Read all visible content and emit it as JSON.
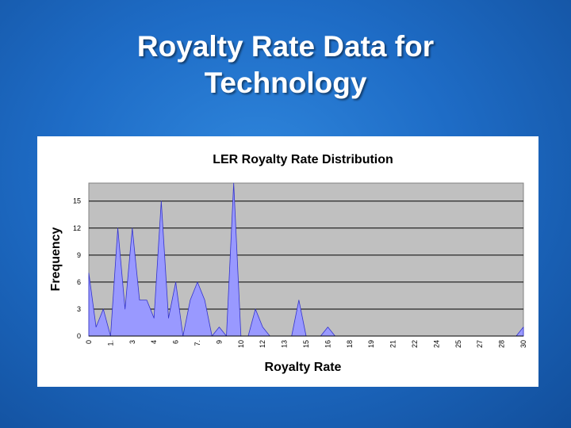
{
  "slide": {
    "title_line1": "Royalty Rate Data for",
    "title_line2": "Technology"
  },
  "colors": {
    "background": "#1e6cc6",
    "plot_area": "#c0c0c0",
    "series_fill": "#9999ff",
    "series_stroke": "#3333cc"
  },
  "chart_data": {
    "type": "area",
    "title": "LER Royalty Rate Distribution",
    "xlabel": "Royalty Rate",
    "ylabel": "Frequency",
    "ylim": [
      0,
      17
    ],
    "yticks": [
      0,
      3,
      6,
      9,
      12,
      15
    ],
    "grid": true,
    "legend": "none",
    "x_tick_labels": [
      "0",
      "1.",
      "3",
      "4",
      "6",
      "7.",
      "9",
      "10",
      "12",
      "13",
      "15",
      "16",
      "18",
      "19",
      "21",
      "22",
      "24",
      "25",
      "27",
      "28",
      "30"
    ],
    "values": [
      7,
      1,
      3,
      0,
      12,
      3,
      12,
      4,
      4,
      2,
      15,
      2,
      6,
      0,
      4,
      6,
      4,
      0,
      1,
      0,
      17,
      0,
      0,
      3,
      1,
      0,
      0,
      0,
      0,
      4,
      0,
      0,
      0,
      1,
      0,
      0,
      0,
      0,
      0,
      0,
      0,
      0,
      0,
      0,
      0,
      0,
      0,
      0,
      0,
      0,
      0,
      0,
      0,
      0,
      0,
      0,
      0,
      0,
      0,
      0,
      1
    ]
  }
}
